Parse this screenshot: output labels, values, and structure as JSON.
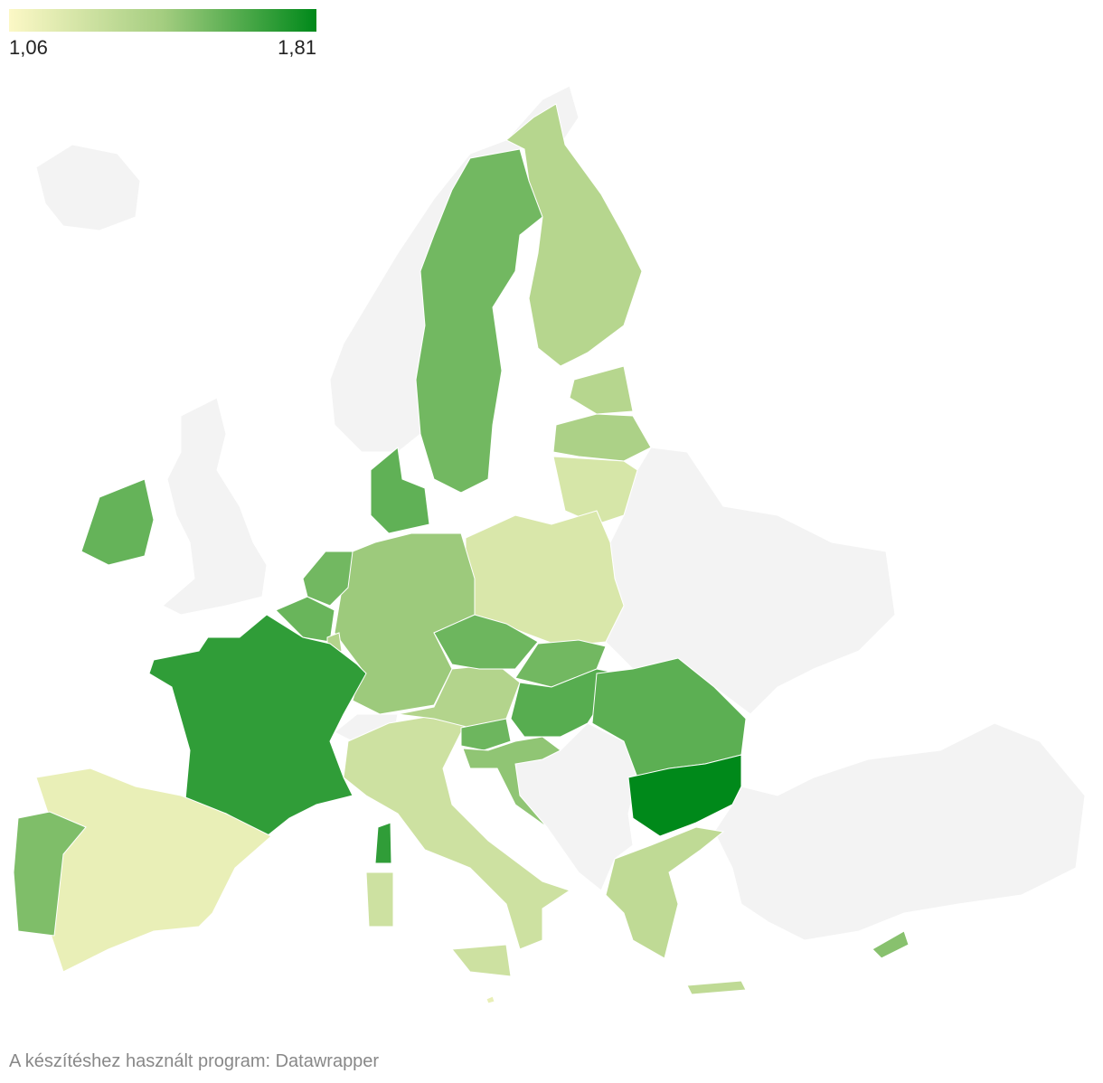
{
  "legend": {
    "min": {
      "value": 1.06,
      "label": "1,06"
    },
    "max": {
      "value": 1.81,
      "label": "1,81"
    },
    "colors": [
      "#fcf8c6",
      "#a4cd80",
      "#00891a"
    ]
  },
  "regions": {
    "values": [
      1.36,
      1.55,
      1.36,
      1.4,
      1.22,
      1.21,
      1.45,
      1.59,
      1.55,
      1.57,
      1.37,
      1.7,
      1.58,
      1.14,
      1.52,
      1.26,
      1.26,
      1.26,
      1.7,
      1.37,
      1.56,
      1.55,
      1.61,
      1.56,
      1.48,
      1.6,
      1.81,
      1.32,
      1.32,
      1.5,
      1.14
    ]
  },
  "credit": "A készítéshez használt program: Datawrapper"
}
